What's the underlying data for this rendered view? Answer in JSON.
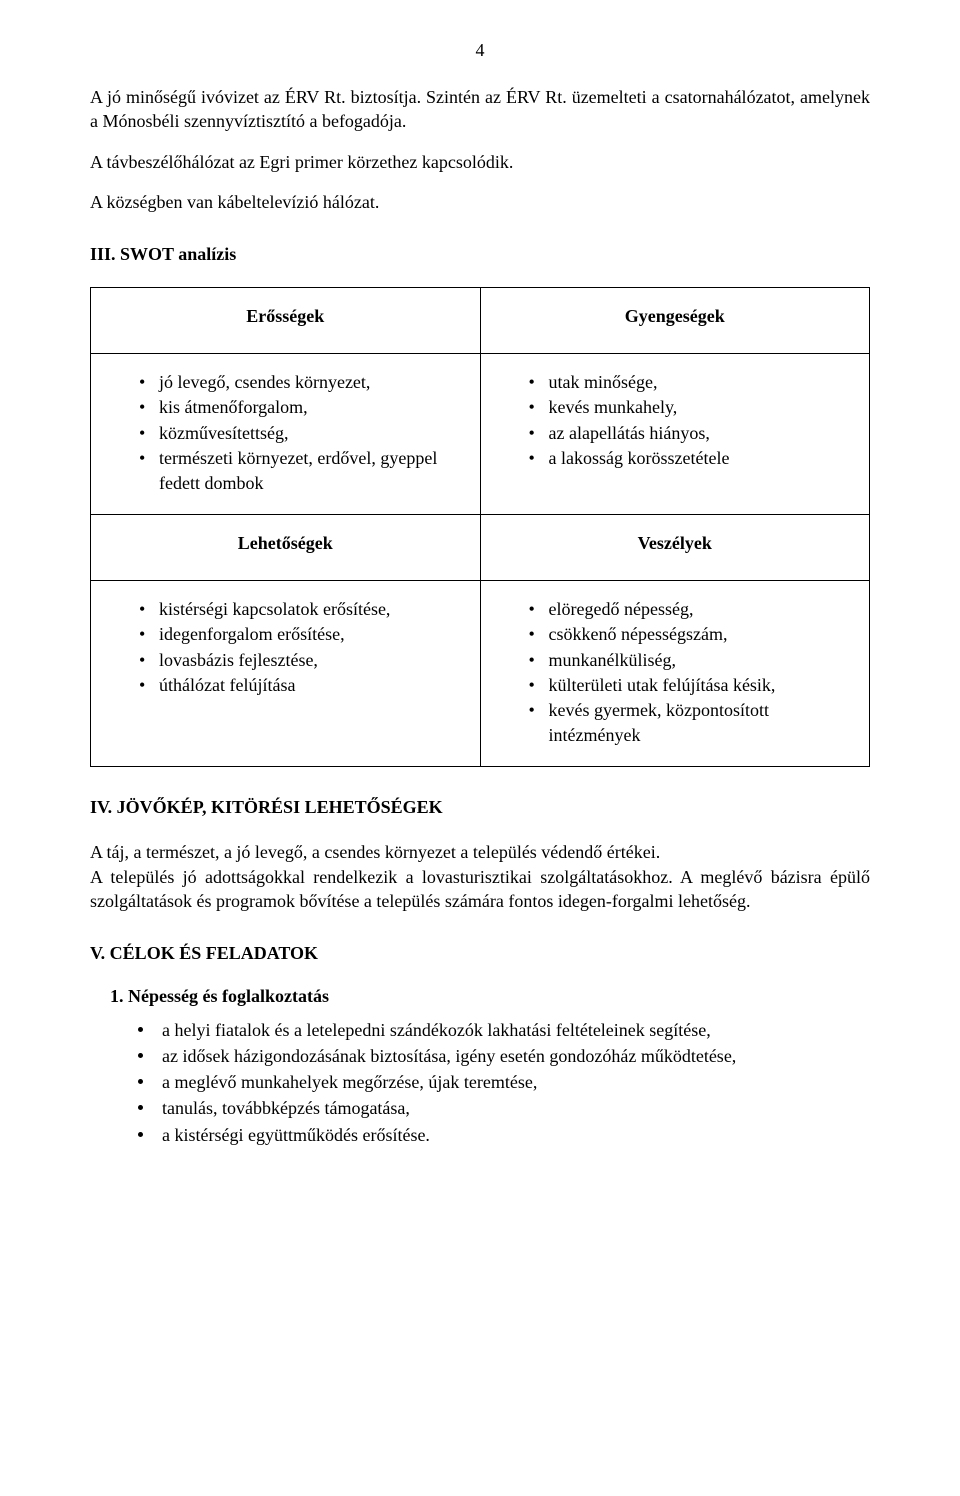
{
  "page_number": "4",
  "paragraphs": {
    "p1": "A jó minőségű ivóvizet az ÉRV Rt. biztosítja. Szintén az ÉRV Rt. üzemelteti a csatornahálózatot, amelynek a Mónosbéli szennyvíztisztító a befogadója.",
    "p2": "A távbeszélőhálózat az Egri primer körzethez kapcsolódik.",
    "p3": "A községben van kábeltelevízió hálózat."
  },
  "sections": {
    "swot_title": "III. SWOT analízis",
    "future_title": "IV. JÖVŐKÉP, KITÖRÉSI LEHETŐSÉGEK",
    "goals_title": "V. CÉLOK ÉS FELADATOK"
  },
  "swot": {
    "type": "table",
    "columns": 2,
    "rows": 4,
    "border_color": "#000000",
    "background_color": "#ffffff",
    "headers": {
      "strengths": "Erősségek",
      "weaknesses": "Gyengeségek",
      "opportunities": "Lehetőségek",
      "threats": "Veszélyek"
    },
    "strengths": [
      "jó levegő, csendes környezet,",
      "kis átmenőforgalom,",
      "közművesítettség,",
      "természeti környezet, erdővel, gyeppel fedett dombok"
    ],
    "weaknesses": [
      "utak minősége,",
      "kevés munkahely,",
      "az alapellátás hiányos,",
      "a lakosság korösszetétele"
    ],
    "opportunities": [
      "kistérségi kapcsolatok erősítése,",
      "idegenforgalom erősítése,",
      "lovasbázis fejlesztése,",
      "úthálózat felújítása"
    ],
    "threats": [
      "elöregedő népesség,",
      "csökkenő népességszám,",
      "munkanélküliség,",
      "külterületi utak felújítása késik,",
      "kevés gyermek, központosított intézmények"
    ]
  },
  "future": {
    "p1": "A táj, a természet, a jó levegő, a csendes környezet a település védendő értékei.",
    "p2": "A település jó adottságokkal rendelkezik a lovasturisztikai szolgáltatásokhoz. A meglévő bázisra épülő szolgáltatások és programok bővítése a település számára fontos idegen-forgalmi lehetőség."
  },
  "goals": {
    "sub1_title": "1. Népesség és foglalkoztatás",
    "sub1_items": [
      "a helyi fiatalok és a letelepedni szándékozók lakhatási feltételeinek segítése,",
      "az idősek házigondozásának biztosítása, igény esetén gondozóház működtetése,",
      "a meglévő munkahelyek megőrzése, újak teremtése,",
      "tanulás, továbbképzés támogatása,",
      "a kistérségi együttműködés erősítése."
    ]
  },
  "style": {
    "font_family": "Times New Roman",
    "body_fontsize_pt": 13,
    "heading_fontsize_pt": 13,
    "text_color": "#000000",
    "background_color": "#ffffff"
  }
}
